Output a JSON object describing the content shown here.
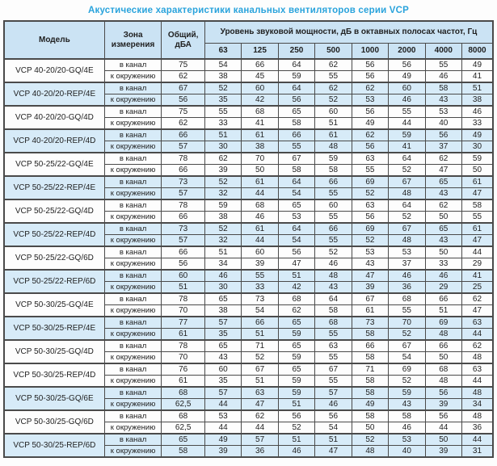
{
  "title": "Акустические характеристики канальных вентиляторов  серии VCP",
  "colors": {
    "title_text": "#29a3dc",
    "header_bg": "#cbe3f4",
    "shaded_row_bg": "#d7ebf8",
    "border": "#4a4a4a",
    "text": "#1f1f1f"
  },
  "chart_data": {
    "type": "table",
    "title": "Акустические характеристики канальных вентиляторов серии VCP",
    "columns": [
      "Модель",
      "Зона измерения",
      "Общий, дБА",
      "63",
      "125",
      "250",
      "500",
      "1000",
      "2000",
      "4000",
      "8000"
    ]
  },
  "table": {
    "headers": {
      "model": "Модель",
      "zone": "Зона измерения",
      "total": "Общий, дБА",
      "spl_group": "Уровень звуковой мощности, дБ в октавных полосах частот, Гц",
      "frequencies": [
        "63",
        "125",
        "250",
        "500",
        "1000",
        "2000",
        "4000",
        "8000"
      ]
    },
    "zone_labels": [
      "в канал",
      "к окружению"
    ],
    "rows": [
      {
        "model": "VCP 40-20/20-GQ/4E",
        "shaded": false,
        "duct": {
          "total": "75",
          "values": [
            54,
            66,
            64,
            62,
            56,
            56,
            55,
            49
          ]
        },
        "ambient": {
          "total": "62",
          "values": [
            38,
            45,
            59,
            55,
            56,
            49,
            46,
            41
          ]
        }
      },
      {
        "model": "VCP 40-20/20-REP/4E",
        "shaded": true,
        "duct": {
          "total": "67",
          "values": [
            52,
            60,
            64,
            62,
            62,
            60,
            58,
            51
          ]
        },
        "ambient": {
          "total": "56",
          "values": [
            35,
            42,
            56,
            52,
            53,
            46,
            43,
            38
          ]
        }
      },
      {
        "model": "VCP 40-20/20-GQ/4D",
        "shaded": false,
        "duct": {
          "total": "75",
          "values": [
            55,
            68,
            65,
            60,
            56,
            55,
            53,
            46
          ]
        },
        "ambient": {
          "total": "62",
          "values": [
            33,
            41,
            58,
            51,
            49,
            44,
            40,
            33
          ]
        }
      },
      {
        "model": "VCP 40-20/20-REP/4D",
        "shaded": true,
        "duct": {
          "total": "66",
          "values": [
            51,
            61,
            66,
            61,
            62,
            59,
            56,
            49
          ]
        },
        "ambient": {
          "total": "57",
          "values": [
            30,
            38,
            55,
            48,
            56,
            41,
            37,
            30
          ]
        }
      },
      {
        "model": "VCP 50-25/22-GQ/4E",
        "shaded": false,
        "duct": {
          "total": "78",
          "values": [
            62,
            70,
            67,
            59,
            63,
            64,
            62,
            59
          ]
        },
        "ambient": {
          "total": "66",
          "values": [
            39,
            50,
            58,
            58,
            55,
            52,
            47,
            50
          ]
        }
      },
      {
        "model": "VCP 50-25/22-REP/4E",
        "shaded": true,
        "duct": {
          "total": "73",
          "values": [
            52,
            61,
            64,
            66,
            69,
            67,
            65,
            61
          ]
        },
        "ambient": {
          "total": "57",
          "values": [
            32,
            44,
            54,
            55,
            52,
            48,
            43,
            47
          ]
        }
      },
      {
        "model": "VCP 50-25/22-GQ/4D",
        "shaded": false,
        "duct": {
          "total": "78",
          "values": [
            59,
            68,
            65,
            60,
            63,
            64,
            62,
            58
          ]
        },
        "ambient": {
          "total": "66",
          "values": [
            38,
            46,
            53,
            55,
            56,
            52,
            50,
            55
          ]
        }
      },
      {
        "model": "VCP 50-25/22-REP/4D",
        "shaded": true,
        "duct": {
          "total": "73",
          "values": [
            52,
            61,
            64,
            66,
            69,
            67,
            65,
            61
          ]
        },
        "ambient": {
          "total": "57",
          "values": [
            32,
            44,
            54,
            55,
            52,
            48,
            43,
            47
          ]
        }
      },
      {
        "model": "VCP 50-25/22-GQ/6D",
        "shaded": false,
        "duct": {
          "total": "66",
          "values": [
            51,
            60,
            56,
            52,
            53,
            53,
            50,
            44
          ]
        },
        "ambient": {
          "total": "56",
          "values": [
            34,
            39,
            47,
            46,
            43,
            37,
            33,
            29
          ]
        }
      },
      {
        "model": "VCP 50-25/22-REP/6D",
        "shaded": true,
        "duct": {
          "total": "60",
          "values": [
            46,
            55,
            51,
            48,
            47,
            46,
            46,
            41
          ]
        },
        "ambient": {
          "total": "51",
          "values": [
            30,
            33,
            42,
            43,
            39,
            36,
            29,
            25
          ]
        }
      },
      {
        "model": "VCP 50-30/25-GQ/4E",
        "shaded": false,
        "duct": {
          "total": "78",
          "values": [
            65,
            73,
            68,
            64,
            67,
            68,
            66,
            62
          ]
        },
        "ambient": {
          "total": "70",
          "values": [
            38,
            54,
            62,
            58,
            61,
            55,
            51,
            47
          ]
        }
      },
      {
        "model": "VCP 50-30/25-REP/4E",
        "shaded": true,
        "duct": {
          "total": "77",
          "values": [
            57,
            66,
            65,
            68,
            73,
            70,
            69,
            63
          ]
        },
        "ambient": {
          "total": "61",
          "values": [
            35,
            51,
            59,
            55,
            58,
            52,
            48,
            44
          ]
        }
      },
      {
        "model": "VCP 50-30/25-GQ/4D",
        "shaded": false,
        "duct": {
          "total": "78",
          "values": [
            65,
            71,
            65,
            63,
            66,
            67,
            66,
            62
          ]
        },
        "ambient": {
          "total": "70",
          "values": [
            43,
            52,
            59,
            55,
            58,
            54,
            50,
            48
          ]
        }
      },
      {
        "model": "VCP 50-30/25-REP/4D",
        "shaded": false,
        "duct": {
          "total": "76",
          "values": [
            60,
            67,
            65,
            67,
            71,
            69,
            68,
            63
          ]
        },
        "ambient": {
          "total": "61",
          "values": [
            35,
            51,
            59,
            55,
            58,
            52,
            48,
            44
          ]
        }
      },
      {
        "model": "VCP 50-30/25-GQ/6E",
        "shaded": true,
        "duct": {
          "total": "68",
          "values": [
            57,
            63,
            59,
            57,
            58,
            59,
            56,
            48
          ]
        },
        "ambient": {
          "total": "62,5",
          "values": [
            44,
            47,
            51,
            46,
            49,
            43,
            39,
            34
          ]
        }
      },
      {
        "model": "VCP 50-30/25-GQ/6D",
        "shaded": false,
        "duct": {
          "total": "68",
          "values": [
            53,
            62,
            56,
            56,
            58,
            58,
            56,
            48
          ]
        },
        "ambient": {
          "total": "62,5",
          "values": [
            44,
            44,
            52,
            54,
            50,
            46,
            44,
            36
          ]
        }
      },
      {
        "model": "VCP 50-30/25-REP/6D",
        "shaded": true,
        "duct": {
          "total": "65",
          "values": [
            49,
            57,
            51,
            51,
            52,
            53,
            50,
            44
          ]
        },
        "ambient": {
          "total": "58",
          "values": [
            39,
            36,
            46,
            47,
            48,
            40,
            39,
            31
          ]
        }
      }
    ]
  }
}
